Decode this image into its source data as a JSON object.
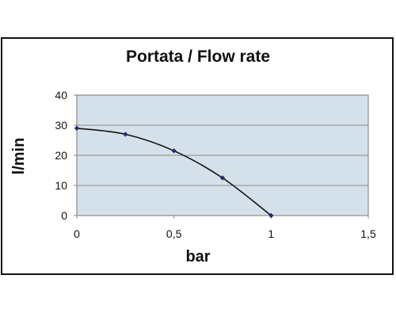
{
  "chart_data": {
    "type": "line",
    "title": "Portata / Flow rate",
    "xlabel": "bar",
    "ylabel": "l/min",
    "xlim": [
      0,
      1.5
    ],
    "ylim": [
      0,
      40
    ],
    "x_ticks": [
      0,
      0.5,
      1,
      1.5
    ],
    "x_tick_labels": [
      "0",
      "0,5",
      "1",
      "1,5"
    ],
    "y_ticks": [
      0,
      10,
      20,
      30,
      40
    ],
    "y_tick_labels": [
      "0",
      "10",
      "20",
      "30",
      "40"
    ],
    "grid": "horizontal",
    "legend": "none",
    "series": [
      {
        "x": [
          0,
          0.25,
          0.5,
          0.75,
          1
        ],
        "y": [
          29,
          27,
          21.5,
          12.5,
          0
        ]
      }
    ],
    "colors": {
      "plot_background": "#d4e1ea",
      "line": "#111111",
      "marker": "#2a2a6a",
      "gridline": "#8a8a8a",
      "frame": "#111111"
    }
  }
}
